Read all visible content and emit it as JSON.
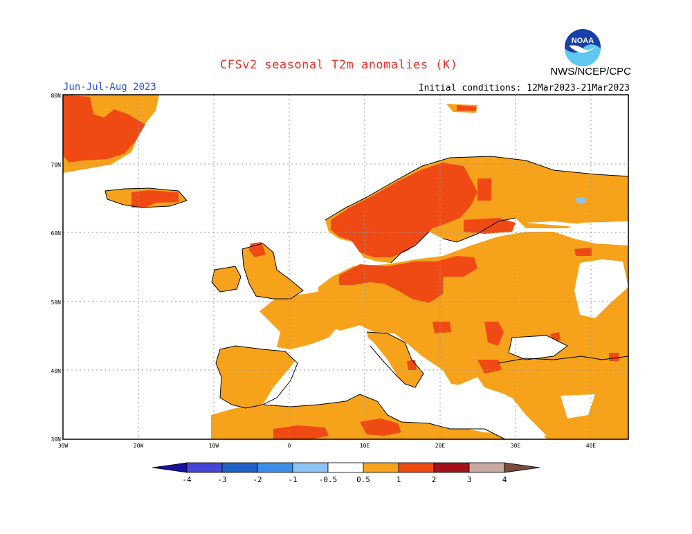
{
  "header": {
    "title": "CFSv2 seasonal T2m anomalies (K)",
    "period": "Jun-Jul-Aug 2023",
    "initial_conditions": "Initial conditions: 12Mar2023-21Mar2023",
    "agency": "NWS/NCEP/CPC",
    "logo_text": "NOAA"
  },
  "map": {
    "region": "Europe",
    "lat_labels": [
      "80N",
      "70N",
      "60N",
      "50N",
      "40N",
      "30N"
    ],
    "lon_labels": [
      "30W",
      "20W",
      "10W",
      "0",
      "10E",
      "20E",
      "30E",
      "40E"
    ],
    "anomaly_summary": {
      "strong_warm_2K": [
        "Scandinavia",
        "Southern Baltic",
        "Iceland",
        "Greenland coast"
      ],
      "warm_1K": [
        "Central Europe",
        "Balkans",
        "Western Russia",
        "Iberia"
      ],
      "neutral": [
        "Mediterranean Sea",
        "North Africa interior",
        "Atlantic Ocean"
      ],
      "cold": [
        "Northern Russia coast (small)"
      ]
    }
  },
  "colorbar": {
    "labels": [
      "-4",
      "-3",
      "-2",
      "-1",
      "-0.5",
      "0.5",
      "1",
      "2",
      "3",
      "4"
    ],
    "colors": [
      "#1a0f9c",
      "#4646d6",
      "#2060c8",
      "#3c8ee6",
      "#8cc4f4",
      "#ffffff",
      "#f7a21b",
      "#f04a14",
      "#a4101a",
      "#c8a8a0",
      "#7a4a40"
    ]
  }
}
